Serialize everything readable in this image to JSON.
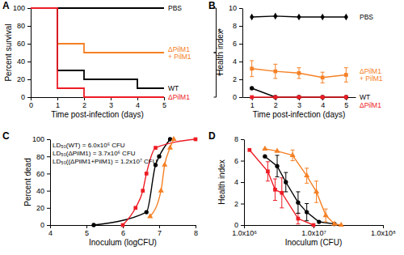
{
  "chart_data": [
    {
      "type": "line",
      "title": "A",
      "x_label": "Time post-infection (days)",
      "y_label": "Percent survival",
      "x": [
        0,
        1,
        2,
        3,
        4,
        5
      ],
      "xlim": [
        0,
        5
      ],
      "xticks": [
        0,
        1,
        2,
        3,
        4,
        5
      ],
      "ylim": [
        0,
        100
      ],
      "yticks": [
        0,
        20,
        40,
        60,
        80,
        100
      ],
      "legend": "right",
      "annotations": [
        "*",
        "*"
      ],
      "series": [
        {
          "name": "PBS",
          "color": "#000000",
          "line_style": "step",
          "values": [
            100,
            100,
            100,
            100,
            100,
            100
          ]
        },
        {
          "name": "ΔPilM1 + PilM1",
          "color": "#f58025",
          "line_style": "step",
          "values": [
            100,
            60,
            50,
            50,
            50,
            50
          ]
        },
        {
          "name": "WT",
          "color": "#000000",
          "line_style": "step",
          "values": [
            100,
            30,
            20,
            20,
            10,
            10
          ]
        },
        {
          "name": "ΔPilM1",
          "color": "#ee1c25",
          "line_style": "step",
          "values": [
            100,
            10,
            0,
            0,
            0,
            0
          ]
        }
      ]
    },
    {
      "type": "line",
      "title": "B",
      "x_label": "Time post-infection (days)",
      "y_label": "Health index",
      "x": [
        1,
        2,
        3,
        4,
        5
      ],
      "xlim": [
        0.6,
        5.4
      ],
      "xticks": [
        1,
        2,
        3,
        4,
        5
      ],
      "ylim": [
        0,
        10
      ],
      "yticks": [
        0,
        2,
        4,
        6,
        8,
        10
      ],
      "legend": "right",
      "annotations": [
        "*",
        "*"
      ],
      "series": [
        {
          "name": "PBS",
          "color": "#000000",
          "line_style": "solid",
          "marker": "diamond",
          "values": [
            9.0,
            9.1,
            9.0,
            9.0,
            9.0
          ]
        },
        {
          "name": "ΔPilM1 + PilM1",
          "color": "#f58025",
          "line_style": "solid",
          "marker": "square",
          "values": [
            3.2,
            2.9,
            2.7,
            2.2,
            2.5
          ],
          "error": [
            0.9,
            0.8,
            0.6,
            0.6,
            0.8
          ]
        },
        {
          "name": "WT",
          "color": "#000000",
          "line_style": "solid",
          "marker": "circle",
          "values": [
            1.0,
            0,
            0,
            0,
            0
          ]
        },
        {
          "name": "ΔPilM1",
          "color": "#ee1c25",
          "line_style": "solid",
          "marker": "square",
          "values": [
            0,
            0,
            0,
            0,
            0
          ]
        }
      ]
    },
    {
      "type": "scatter",
      "title": "C",
      "x_label": "Inoculum (logCFU)",
      "y_label": "Percent dead",
      "xlim": [
        4,
        8
      ],
      "xticks": [
        4,
        5,
        6,
        7,
        8
      ],
      "ylim": [
        0,
        100
      ],
      "yticks": [
        0,
        20,
        40,
        60,
        80,
        100
      ],
      "annotations": [
        "LD₅₀(WT) = 6.0x10⁶ CFU",
        "LD₅₀(ΔPilM1) = 3.7x10⁶ CFU",
        "LD₅₀((ΔPilM1+PilM1) = 1.2x10⁷ CFU"
      ],
      "series": [
        {
          "color": "#000000",
          "marker": "circle",
          "line_style": "smooth",
          "x": [
            5.2,
            6.65,
            6.9,
            7.0,
            7.3
          ],
          "values": [
            0,
            15,
            70,
            80,
            100
          ]
        },
        {
          "color": "#ee1c25",
          "marker": "square",
          "line_style": "smooth",
          "x": [
            6.0,
            6.35,
            6.55,
            6.65,
            6.9,
            8.0
          ],
          "values": [
            0,
            20,
            40,
            60,
            90,
            100
          ]
        },
        {
          "color": "#f58025",
          "marker": "triangle",
          "line_style": "smooth",
          "x": [
            6.75,
            7.05,
            7.15,
            7.3,
            7.4
          ],
          "values": [
            10,
            40,
            70,
            90,
            100
          ]
        }
      ]
    },
    {
      "type": "line",
      "title": "D",
      "x_label": "Inoculum (CFU)",
      "y_label": "Health index",
      "log": "x",
      "xlim": [
        1000000,
        100000000
      ],
      "xticks": [
        {
          "value": 1000000,
          "label": "1.0x10⁶"
        },
        {
          "value": 10000000,
          "label": "1.0x10⁷"
        },
        {
          "value": 100000000,
          "label": "1.0x10⁸"
        }
      ],
      "ylim": [
        0,
        8
      ],
      "yticks": [
        0,
        2,
        4,
        6,
        8
      ],
      "series": [
        {
          "color": "#ee1c25",
          "marker": "square",
          "line_style": "solid",
          "x": [
            1200000,
            2200000,
            2800000,
            3500000,
            6000000,
            10000000
          ],
          "values": [
            7.0,
            5.0,
            3.3,
            3.0,
            0.6,
            0
          ],
          "error": [
            null,
            0.9,
            1.0,
            1.4,
            0.5,
            null
          ]
        },
        {
          "color": "#000000",
          "marker": "circle",
          "line_style": "solid",
          "x": [
            2000000,
            3000000,
            4000000,
            6000000,
            8000000,
            12000000,
            20000000
          ],
          "values": [
            6.4,
            5.5,
            4.0,
            2.1,
            1.2,
            0.3,
            0.1
          ],
          "error": [
            null,
            1.0,
            0.9,
            1.0,
            0.8,
            null,
            null
          ]
        },
        {
          "color": "#f58025",
          "marker": "triangle",
          "line_style": "solid",
          "x": [
            2000000,
            3000000,
            5000000,
            8000000,
            11000000,
            15000000,
            20000000,
            25000000
          ],
          "values": [
            7.1,
            6.9,
            6.5,
            4.6,
            3.1,
            0.9,
            0.1,
            0
          ],
          "error": [
            null,
            null,
            0.5,
            0.7,
            1.0,
            0.6,
            null,
            null
          ]
        }
      ]
    }
  ]
}
